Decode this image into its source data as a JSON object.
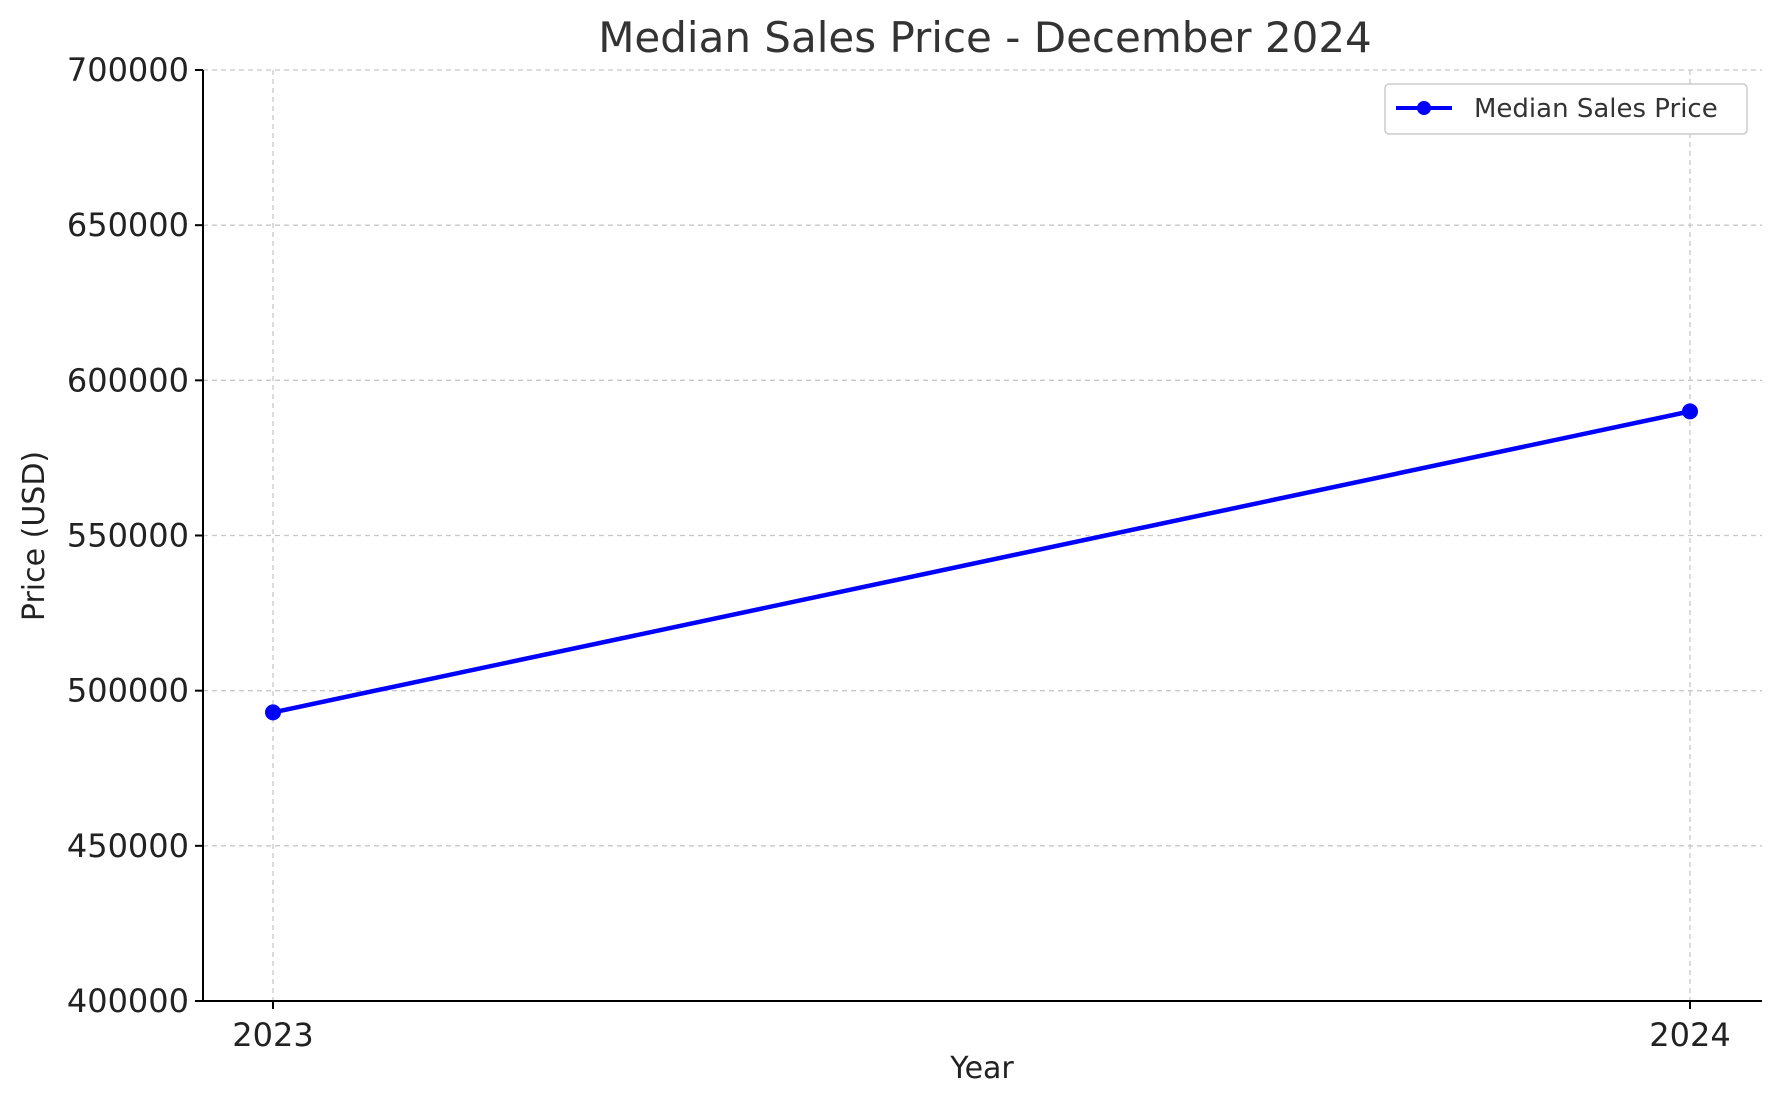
{
  "chart_data": {
    "type": "line",
    "title": "Median Sales Price - December 2024",
    "xlabel": "Year",
    "ylabel": "Price (USD)",
    "categories": [
      "2023",
      "2024"
    ],
    "series": [
      {
        "name": "Median Sales Price",
        "values": [
          493000,
          590000
        ],
        "color": "#0000ff",
        "marker": "circle"
      }
    ],
    "ylim": [
      400000,
      700000
    ],
    "yticks": [
      "400000",
      "450000",
      "500000",
      "550000",
      "600000",
      "650000",
      "700000"
    ],
    "grid": true,
    "legend": "top-right"
  }
}
